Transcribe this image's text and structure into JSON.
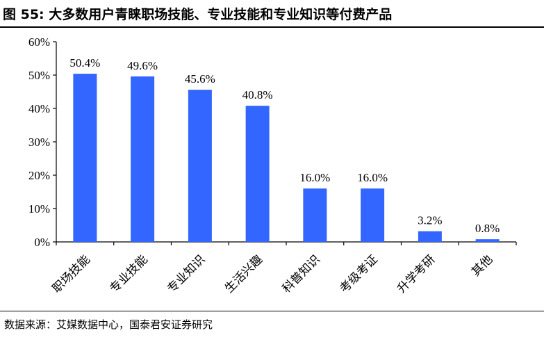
{
  "header": {
    "title": "图 55: 大多数用户青睐职场技能、专业技能和专业知识等付费产品"
  },
  "footer": {
    "source": "数据来源：艾媒数据中心，国泰君安证券研究"
  },
  "colors": {
    "bar": "#3366ff",
    "axis": "#000000"
  },
  "chart_data": {
    "type": "bar",
    "categories": [
      "职场技能",
      "专业技能",
      "专业知识",
      "生活兴趣",
      "科普知识",
      "考级考证",
      "升学考研",
      "其他"
    ],
    "values": [
      50.4,
      49.6,
      45.6,
      40.8,
      16.0,
      16.0,
      3.2,
      0.8
    ],
    "value_labels": [
      "50.4%",
      "49.6%",
      "45.6%",
      "40.8%",
      "16.0%",
      "16.0%",
      "3.2%",
      "0.8%"
    ],
    "y_ticks": [
      0,
      10,
      20,
      30,
      40,
      50,
      60
    ],
    "y_tick_labels": [
      "0%",
      "10%",
      "20%",
      "30%",
      "40%",
      "50%",
      "60%"
    ],
    "ylim": [
      0,
      60
    ],
    "grid": false,
    "legend": "none"
  }
}
